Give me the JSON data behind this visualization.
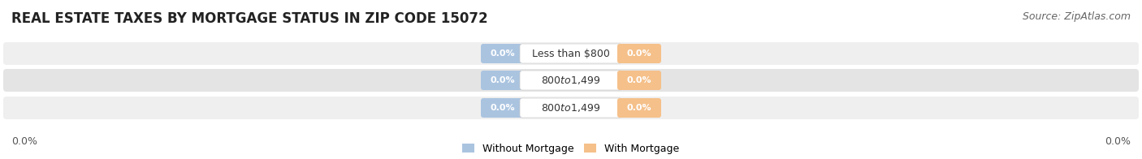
{
  "title": "REAL ESTATE TAXES BY MORTGAGE STATUS IN ZIP CODE 15072",
  "source": "Source: ZipAtlas.com",
  "categories": [
    "Less than $800",
    "$800 to $1,499",
    "$800 to $1,499"
  ],
  "without_mortgage_color": "#aac4e0",
  "with_mortgage_color": "#f5c08a",
  "row_bg_light": "#efefef",
  "row_bg_dark": "#e4e4e4",
  "title_fontsize": 12,
  "source_fontsize": 9,
  "bar_label_fontsize": 8,
  "category_fontsize": 9,
  "legend_fontsize": 9,
  "background_color": "#ffffff"
}
